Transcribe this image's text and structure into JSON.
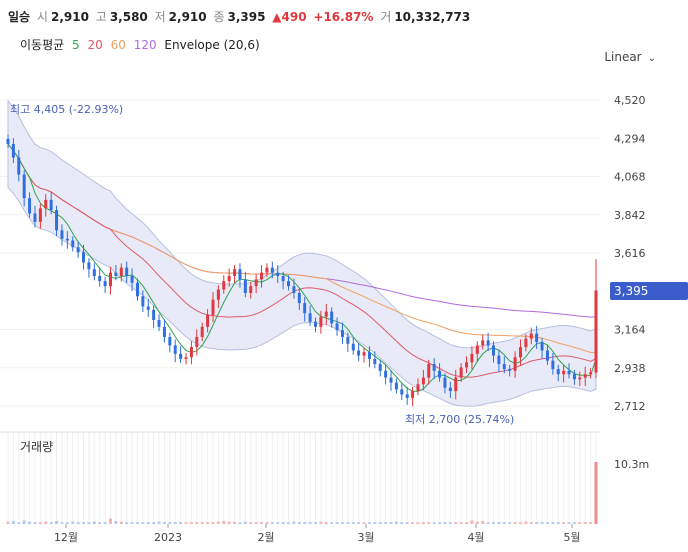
{
  "header": {
    "interval": "일승",
    "open_label": "시",
    "open": "2,910",
    "high_label": "고",
    "high": "3,580",
    "low_label": "저",
    "low": "2,910",
    "close_label": "종",
    "close": "3,395",
    "change": "▲490",
    "change_pct": "+16.87%",
    "volume_label": "거",
    "volume": "10,332,773"
  },
  "indicators": {
    "ma_label": "이동평균",
    "ma5": "5",
    "ma20": "20",
    "ma60": "60",
    "ma120": "120",
    "envelope": "Envelope (20,6)"
  },
  "scale_mode": "Linear",
  "colors": {
    "up": "#e0383e",
    "down": "#2f6fe0",
    "ma5": "#2ea44f",
    "ma20": "#e05a6a",
    "ma60": "#f0a060",
    "ma120": "#b06be0",
    "envelope_fill": "#e8ebf7",
    "envelope_line": "#b8bfe0",
    "price_tag": "#3b5dcc"
  },
  "chart_data": {
    "type": "candlestick",
    "y_ticks": [
      "4,520",
      "4,294",
      "4,068",
      "3,842",
      "3,616",
      "3,164",
      "2,938",
      "2,712"
    ],
    "x_ticks": [
      "12월",
      "2023",
      "2월",
      "3월",
      "4월",
      "5월"
    ],
    "ylim": [
      2712,
      4520
    ],
    "current_price": "3,395",
    "max_marker": "최고 4,405 (-22.93%)",
    "min_marker": "최저 2,700 (25.74%)",
    "volume_title": "거래량",
    "volume_max_label": "10.3m",
    "close": [
      4260,
      4180,
      4080,
      3940,
      3850,
      3800,
      3880,
      3930,
      3870,
      3750,
      3700,
      3690,
      3650,
      3620,
      3560,
      3520,
      3480,
      3450,
      3420,
      3500,
      3480,
      3530,
      3480,
      3440,
      3360,
      3300,
      3280,
      3220,
      3180,
      3120,
      3070,
      3020,
      2990,
      3000,
      3060,
      3120,
      3180,
      3250,
      3340,
      3400,
      3450,
      3480,
      3520,
      3460,
      3380,
      3420,
      3460,
      3500,
      3530,
      3500,
      3480,
      3450,
      3420,
      3380,
      3320,
      3260,
      3210,
      3180,
      3240,
      3270,
      3200,
      3160,
      3120,
      3080,
      3040,
      3010,
      3030,
      2990,
      2960,
      2920,
      2880,
      2850,
      2810,
      2780,
      2760,
      2800,
      2840,
      2880,
      2960,
      2920,
      2880,
      2820,
      2800,
      2880,
      2940,
      2970,
      3020,
      3070,
      3100,
      3070,
      3010,
      2960,
      2930,
      2920,
      3000,
      3060,
      3110,
      3140,
      3090,
      3040,
      2980,
      2930,
      2900,
      2920,
      2900,
      2870,
      2880,
      2900,
      2910,
      3395
    ],
    "volume": [
      0.4,
      0.5,
      0.3,
      0.6,
      0.4,
      0.3,
      0.3,
      0.4,
      0.3,
      0.5,
      0.3,
      0.3,
      0.4,
      0.3,
      0.3,
      0.3,
      0.4,
      0.3,
      0.3,
      0.9,
      0.5,
      0.4,
      0.3,
      0.3,
      0.3,
      0.3,
      0.3,
      0.3,
      0.4,
      0.3,
      0.3,
      0.3,
      0.3,
      0.3,
      0.3,
      0.3,
      0.3,
      0.3,
      0.3,
      0.4,
      0.5,
      0.4,
      0.4,
      0.3,
      0.4,
      0.3,
      0.3,
      0.3,
      0.3,
      0.3,
      0.3,
      0.3,
      0.3,
      0.4,
      0.3,
      0.3,
      0.3,
      0.3,
      0.4,
      0.3,
      0.3,
      0.3,
      0.3,
      0.3,
      0.3,
      0.3,
      0.3,
      0.3,
      0.3,
      0.3,
      0.3,
      0.3,
      0.4,
      0.3,
      0.3,
      0.3,
      0.3,
      0.3,
      0.3,
      0.3,
      0.3,
      0.3,
      0.3,
      0.3,
      0.3,
      0.3,
      0.6,
      0.4,
      0.5,
      0.3,
      0.3,
      0.3,
      0.3,
      0.3,
      0.3,
      0.3,
      0.4,
      0.3,
      0.3,
      0.3,
      0.3,
      0.3,
      0.3,
      0.3,
      0.3,
      0.3,
      0.3,
      0.3,
      0.3,
      10.3
    ]
  }
}
